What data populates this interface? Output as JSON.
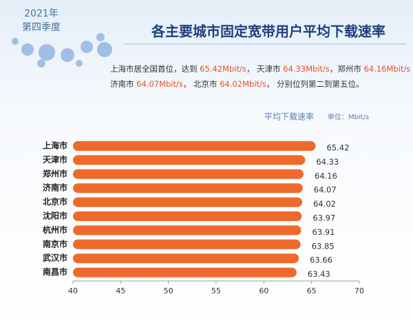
{
  "header": {
    "year": "2021年",
    "quarter": "第四季度",
    "title": "各主要城市固定宽带用户平均下载速率"
  },
  "description": [
    [
      "上海市居全国首位，达到 ",
      "65.42Mbit/s",
      "，  天津市 ",
      "64.33Mbit/s",
      "，郑州市 ",
      "64.16Mbit/s"
    ],
    [
      "济南市 ",
      "64.07Mbit/s",
      "，  北京市 ",
      "64.02Mbit/s",
      "，  分别位列第二到第五位。"
    ]
  ],
  "highlight_color": "#e8502a",
  "chart_data": {
    "type": "hbar",
    "title": "平均下载速率",
    "unit": "单位：Mbit/s",
    "categories": [
      "上海市",
      "天津市",
      "郑州市",
      "济南市",
      "北京市",
      "沈阳市",
      "杭州市",
      "南京市",
      "武汉市",
      "南昌市"
    ],
    "values": [
      65.42,
      64.33,
      64.16,
      64.07,
      64.02,
      63.97,
      63.91,
      63.85,
      63.66,
      63.43
    ],
    "color": "#ee6a2c",
    "xlim": [
      40,
      70
    ],
    "xticks": [
      40,
      45,
      50,
      55,
      60,
      65,
      70
    ]
  }
}
